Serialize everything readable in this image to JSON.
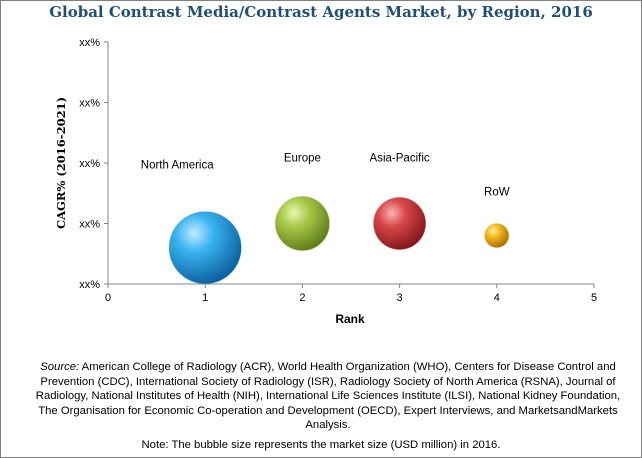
{
  "title": "Global Contrast Media/Contrast Agents Market, by Region, 2016",
  "source_label": "Source:",
  "source_text": "American College of Radiology (ACR), World Health Organization (WHO), Centers for Disease Control and Prevention (CDC), International Society of Radiology (ISR), Radiology Society of North America (RSNA), Journal of Radiology, National Institutes of Health (NIH), International Life Sciences Institute (ILSI), National Kidney Foundation, The Organisation for Economic Co-operation and Development (OECD), Expert Interviews, and MarketsandMarkets Analysis.",
  "note": "Note: The bubble size represents the market size (USD million) in 2016.",
  "chart_data": {
    "type": "scatter",
    "xlabel": "Rank",
    "ylabel": "CAGR% (2016-2021)",
    "xlim": [
      0,
      5
    ],
    "ylim": [
      0,
      4
    ],
    "x_ticks": [
      "0",
      "1",
      "2",
      "3",
      "4",
      "5"
    ],
    "y_ticks": [
      "xx%",
      "xx%",
      "xx%",
      "xx%",
      "xx%"
    ],
    "grid": false,
    "series": [
      {
        "name": "North America",
        "x": 1,
        "y": 0.6,
        "size": 36,
        "color": "#1e8fd6"
      },
      {
        "name": "Europe",
        "x": 2,
        "y": 1.0,
        "size": 27,
        "color": "#8fb03a"
      },
      {
        "name": "Asia-Pacific",
        "x": 3,
        "y": 1.0,
        "size": 26,
        "color": "#c8363a"
      },
      {
        "name": "RoW",
        "x": 4,
        "y": 0.8,
        "size": 12,
        "color": "#e3a312"
      }
    ]
  }
}
